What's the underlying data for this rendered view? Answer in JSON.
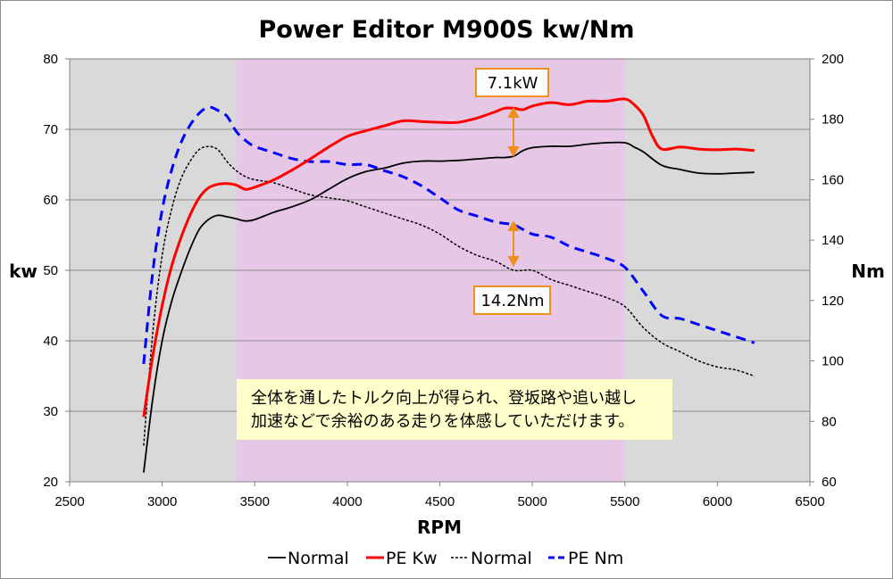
{
  "chart_data": {
    "type": "line",
    "title": "Power Editor M900S kw/Nm",
    "xlabel": "RPM",
    "ylabel": "kw",
    "y2label": "Nm",
    "xlim": [
      2500,
      6500
    ],
    "ylim": [
      20,
      80
    ],
    "y2lim": [
      60,
      200
    ],
    "x_ticks": [
      "2500",
      "3000",
      "3500",
      "4000",
      "4500",
      "5000",
      "5500",
      "6000",
      "6500"
    ],
    "y_ticks": [
      "20",
      "30",
      "40",
      "50",
      "60",
      "70",
      "80"
    ],
    "y2_ticks": [
      "60",
      "80",
      "100",
      "120",
      "140",
      "160",
      "180",
      "200"
    ],
    "grid": true,
    "legend_position": "bottom",
    "highlight_band": {
      "x": [
        3400,
        5500
      ],
      "color": "#e6c8e6"
    },
    "plot_background": "#d9d9d9",
    "series": [
      {
        "name": "Normal",
        "axis": "kw",
        "color": "#000000",
        "style": "solid",
        "x": [
          2900,
          2950,
          3000,
          3050,
          3100,
          3150,
          3200,
          3250,
          3300,
          3350,
          3400,
          3450,
          3500,
          3600,
          3700,
          3800,
          3900,
          4000,
          4100,
          4200,
          4300,
          4400,
          4500,
          4600,
          4700,
          4800,
          4850,
          4900,
          4950,
          5000,
          5100,
          5200,
          5300,
          5400,
          5500,
          5550,
          5600,
          5700,
          5800,
          5900,
          6000,
          6100,
          6200
        ],
        "values": [
          21.3,
          32,
          40,
          45.5,
          49.5,
          53,
          55.8,
          57.2,
          57.8,
          57.6,
          57.3,
          57.0,
          57.2,
          58.2,
          59,
          60,
          61.5,
          63,
          64,
          64.5,
          65.2,
          65.5,
          65.5,
          65.6,
          65.8,
          66.0,
          66.0,
          66.2,
          67,
          67.4,
          67.6,
          67.6,
          67.9,
          68.1,
          68.1,
          67.5,
          66.8,
          64.9,
          64.3,
          63.8,
          63.7,
          63.8,
          63.9
        ]
      },
      {
        "name": "PE Kw",
        "axis": "kw",
        "color": "#ff0000",
        "style": "solid",
        "x": [
          2900,
          2950,
          3000,
          3050,
          3100,
          3150,
          3200,
          3250,
          3300,
          3350,
          3400,
          3450,
          3500,
          3600,
          3700,
          3800,
          3900,
          4000,
          4100,
          4200,
          4300,
          4400,
          4500,
          4600,
          4700,
          4800,
          4850,
          4900,
          4950,
          5000,
          5100,
          5200,
          5300,
          5400,
          5500,
          5550,
          5600,
          5650,
          5700,
          5800,
          5900,
          6000,
          6100,
          6200
        ],
        "values": [
          29.2,
          38,
          45,
          50.5,
          54.5,
          57.8,
          60.3,
          61.7,
          62.2,
          62.3,
          62.1,
          61.5,
          61.8,
          62.8,
          64.2,
          65.8,
          67.5,
          69,
          69.8,
          70.5,
          71.2,
          71.1,
          71.0,
          71.0,
          71.6,
          72.5,
          73.0,
          73.0,
          72.8,
          73.3,
          73.8,
          73.5,
          74.0,
          74.0,
          74.3,
          73.5,
          72.0,
          69,
          67.2,
          67.5,
          67.2,
          67.1,
          67.2,
          67.0
        ]
      },
      {
        "name": "Normal",
        "axis": "Nm",
        "color": "#000000",
        "style": "dotted",
        "x": [
          2900,
          2950,
          3000,
          3050,
          3100,
          3150,
          3200,
          3250,
          3300,
          3350,
          3400,
          3450,
          3500,
          3600,
          3700,
          3800,
          3900,
          4000,
          4100,
          4200,
          4300,
          4400,
          4500,
          4600,
          4700,
          4800,
          4900,
          5000,
          5100,
          5200,
          5300,
          5400,
          5500,
          5600,
          5700,
          5800,
          5900,
          6000,
          6100,
          6200
        ],
        "values": [
          72,
          110,
          135,
          150,
          160,
          166,
          170,
          171,
          170,
          166,
          163,
          161,
          160,
          159,
          157,
          155,
          154,
          153,
          151,
          149,
          147,
          145,
          142,
          138,
          135,
          133,
          130,
          130,
          127,
          125,
          123,
          121,
          118,
          111,
          106,
          103,
          100,
          98,
          97,
          95
        ]
      },
      {
        "name": "PE Nm",
        "axis": "Nm",
        "color": "#0000ff",
        "style": "dashed",
        "x": [
          2900,
          2950,
          3000,
          3050,
          3100,
          3150,
          3200,
          3250,
          3300,
          3350,
          3400,
          3450,
          3500,
          3600,
          3700,
          3800,
          3900,
          4000,
          4100,
          4200,
          4300,
          4400,
          4500,
          4600,
          4700,
          4800,
          4900,
          5000,
          5100,
          5200,
          5300,
          5400,
          5500,
          5600,
          5700,
          5800,
          5900,
          6000,
          6100,
          6200
        ],
        "values": [
          99,
          130,
          150,
          163,
          172,
          178,
          182,
          184,
          183,
          181,
          176,
          173,
          171,
          169,
          167,
          166,
          166,
          165,
          165,
          163,
          161,
          158,
          154,
          150,
          148,
          146,
          145,
          142,
          141,
          138,
          136,
          134,
          131,
          123,
          115,
          114,
          112,
          110,
          108,
          106
        ]
      }
    ],
    "annotations": [
      {
        "text": "7.1kW"
      },
      {
        "text": "14.2Nm"
      }
    ],
    "note": {
      "line1": "全体を通したトルク向上が得られ、登坂路や追い越し",
      "line2": "加速などで余裕のある走りを体感していただけます。"
    }
  }
}
